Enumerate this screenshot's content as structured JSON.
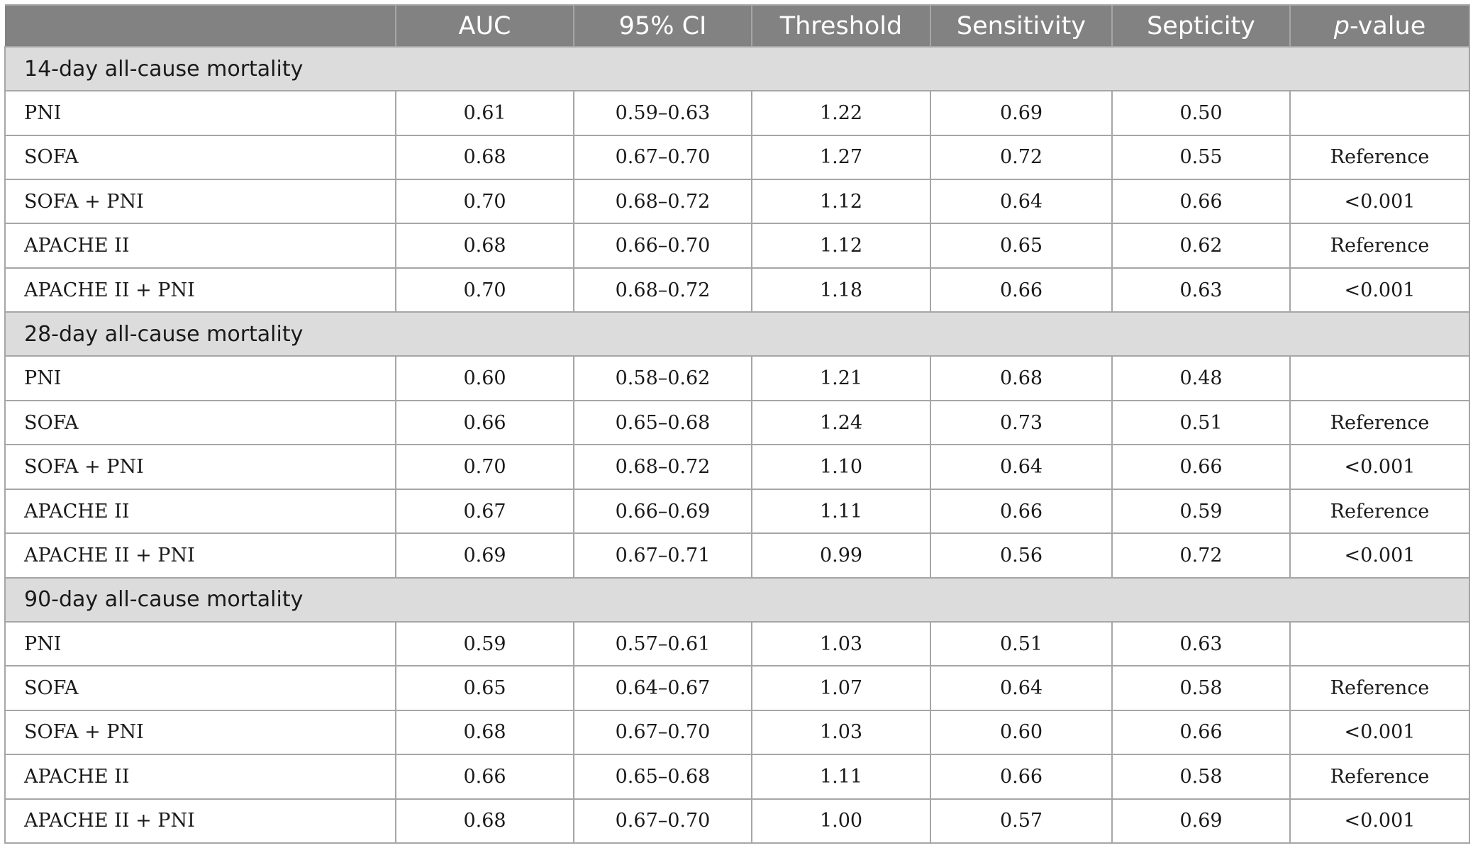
{
  "headers": [
    "",
    "AUC",
    "95% CI",
    "Threshold",
    "Sensitivity",
    "Septicity",
    "p-value"
  ],
  "p_value_header": {
    "italic": "p",
    "rest": "-value"
  },
  "sections": [
    {
      "title": "14-day all-cause mortality",
      "rows": [
        [
          "PNI",
          "0.61",
          "0.59–0.63",
          "1.22",
          "0.69",
          "0.50",
          ""
        ],
        [
          "SOFA",
          "0.68",
          "0.67–0.70",
          "1.27",
          "0.72",
          "0.55",
          "Reference"
        ],
        [
          "SOFA + PNI",
          "0.70",
          "0.68–0.72",
          "1.12",
          "0.64",
          "0.66",
          "<0.001"
        ],
        [
          "APACHE II",
          "0.68",
          "0.66–0.70",
          "1.12",
          "0.65",
          "0.62",
          "Reference"
        ],
        [
          "APACHE II + PNI",
          "0.70",
          "0.68–0.72",
          "1.18",
          "0.66",
          "0.63",
          "<0.001"
        ]
      ]
    },
    {
      "title": "28-day all-cause mortality",
      "rows": [
        [
          "PNI",
          "0.60",
          "0.58–0.62",
          "1.21",
          "0.68",
          "0.48",
          ""
        ],
        [
          "SOFA",
          "0.66",
          "0.65–0.68",
          "1.24",
          "0.73",
          "0.51",
          "Reference"
        ],
        [
          "SOFA + PNI",
          "0.70",
          "0.68–0.72",
          "1.10",
          "0.64",
          "0.66",
          "<0.001"
        ],
        [
          "APACHE II",
          "0.67",
          "0.66–0.69",
          "1.11",
          "0.66",
          "0.59",
          "Reference"
        ],
        [
          "APACHE II + PNI",
          "0.69",
          "0.67–0.71",
          "0.99",
          "0.56",
          "0.72",
          "<0.001"
        ]
      ]
    },
    {
      "title": "90-day all-cause mortality",
      "rows": [
        [
          "PNI",
          "0.59",
          "0.57–0.61",
          "1.03",
          "0.51",
          "0.63",
          ""
        ],
        [
          "SOFA",
          "0.65",
          "0.64–0.67",
          "1.07",
          "0.64",
          "0.58",
          "Reference"
        ],
        [
          "SOFA + PNI",
          "0.68",
          "0.67–0.70",
          "1.03",
          "0.60",
          "0.66",
          "<0.001"
        ],
        [
          "APACHE II",
          "0.66",
          "0.65–0.68",
          "1.11",
          "0.66",
          "0.58",
          "Reference"
        ],
        [
          "APACHE II + PNI",
          "0.68",
          "0.67–0.70",
          "1.00",
          "0.57",
          "0.69",
          "<0.001"
        ]
      ]
    }
  ]
}
